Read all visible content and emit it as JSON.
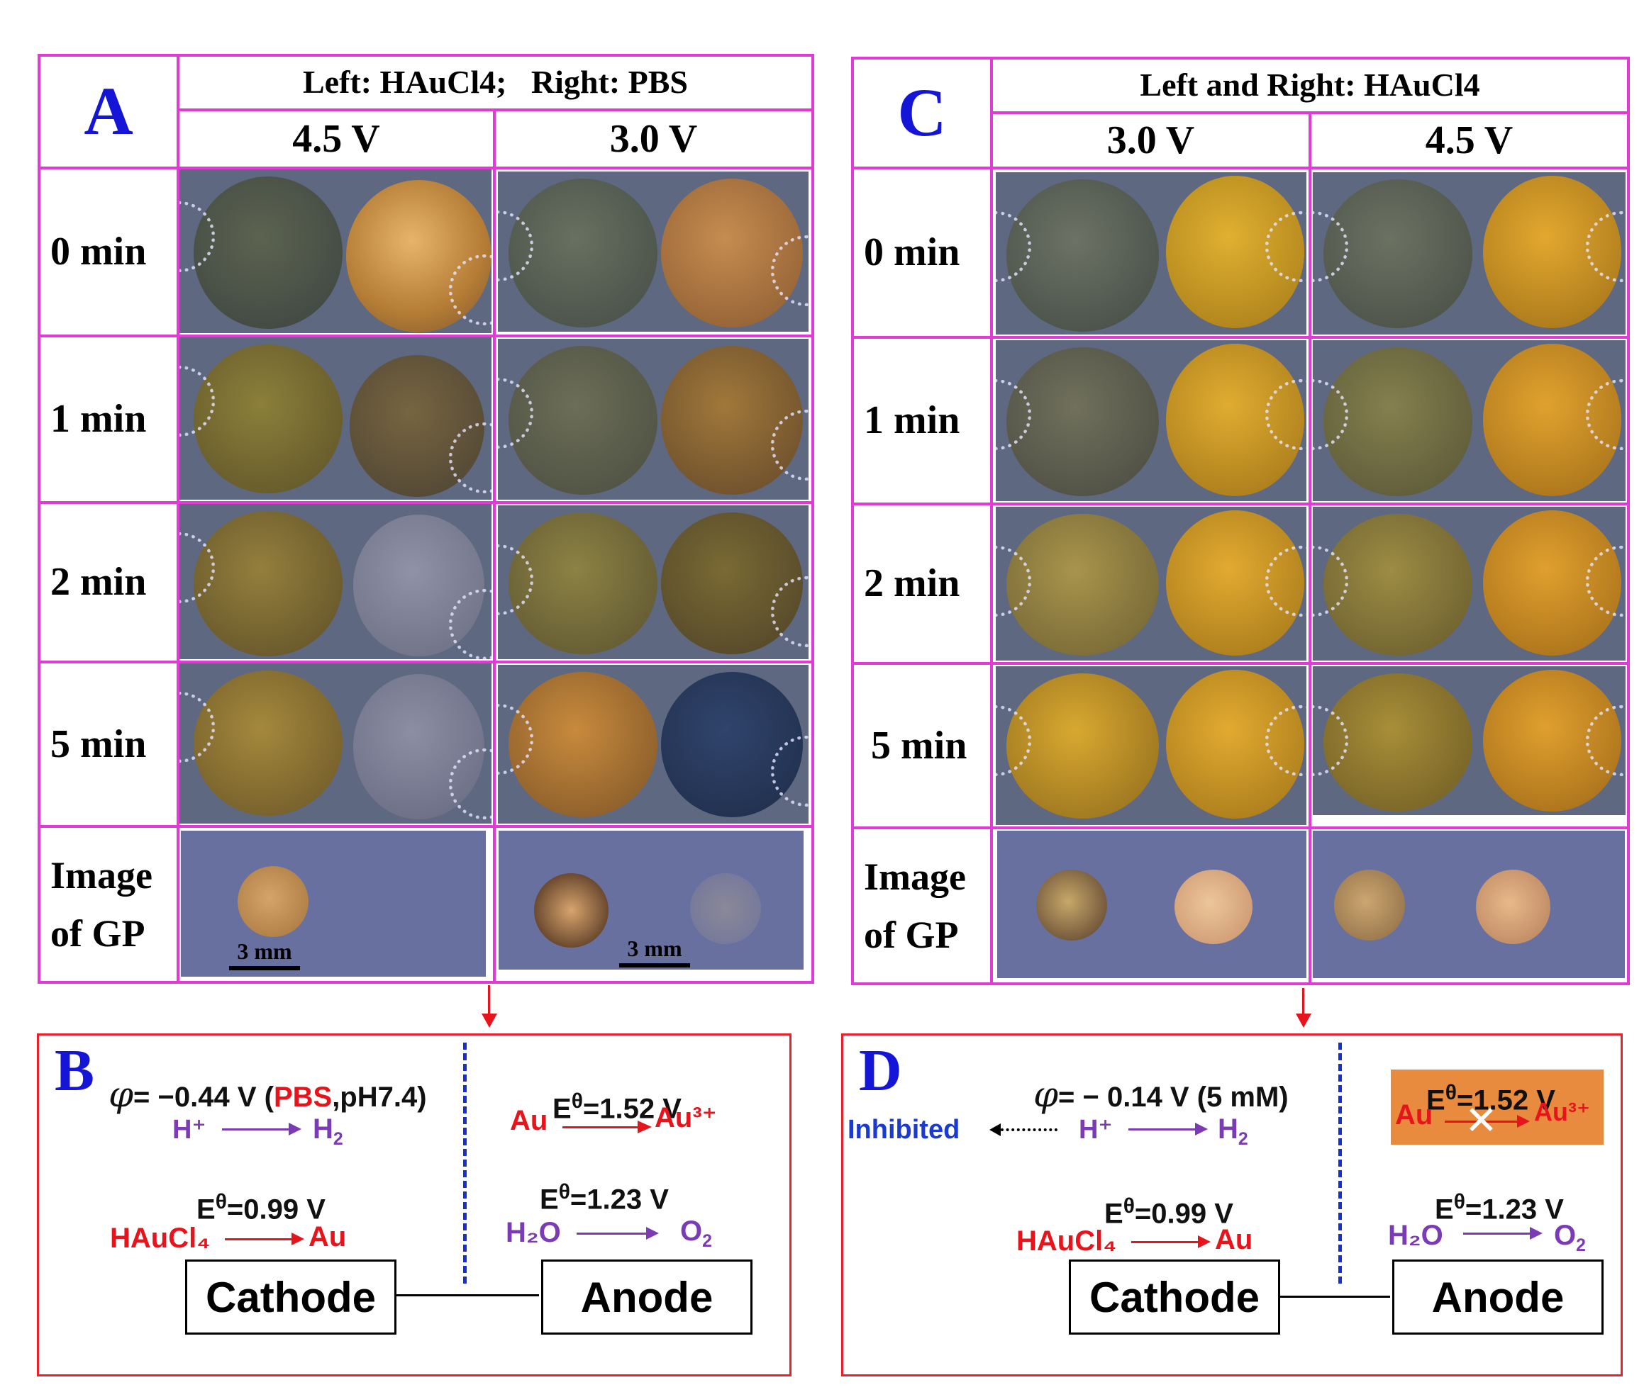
{
  "panel_a": {
    "letter": "A",
    "header": "Left: HAuCl4;   Right: PBS",
    "col1_voltage": "4.5 V",
    "col2_voltage": "3.0 V",
    "rows": [
      "0 min",
      "1 min",
      "2 min",
      "5 min"
    ],
    "gp_label_1": "Image",
    "gp_label_2": "of GP",
    "scale_1": "3 mm",
    "scale_2": "3 mm"
  },
  "panel_c": {
    "letter": "C",
    "header": "Left and Right: HAuCl4",
    "col1_voltage": "3.0 V",
    "col2_voltage": "4.5 V",
    "rows": [
      "0 min",
      "1 min",
      "2 min",
      "5 min"
    ],
    "gp_label_1": "Image",
    "gp_label_2": "of GP"
  },
  "panel_b": {
    "letter": "B",
    "phi_symbol": "φ",
    "phi_value": "= −0.44 V (",
    "phi_pbs": "PBS",
    "phi_tail": ",pH7.4)",
    "h_plus": "H⁺",
    "h2": "H",
    "au_left": "Au",
    "e_au": "E",
    "e_au_value": "=1.52 V",
    "au3": "Au³⁺",
    "e_cat": "E",
    "e_cat_value": "=0.99 V",
    "haucl4": "HAuCl₄",
    "au_prod": "Au",
    "e_o2": "E",
    "e_o2_value": "=1.23 V",
    "h2o": "H₂O",
    "o2": "O",
    "cathode": "Cathode",
    "anode": "Anode"
  },
  "panel_d": {
    "letter": "D",
    "phi_symbol": "φ",
    "phi_value": "= − 0.14 V (5 mM)",
    "inhibited": "Inhibited",
    "h_plus": "H⁺",
    "h2": "H",
    "au_left": "Au",
    "e_au": "E",
    "e_au_value": "=1.52 V",
    "au3": "Au³⁺",
    "e_cat": "E",
    "e_cat_value": "=0.99 V",
    "haucl4": "HAuCl₄",
    "au_prod": "Au",
    "e_o2": "E",
    "e_o2_value": "=1.23 V",
    "h2o": "H₂O",
    "o2": "O",
    "cathode": "Cathode",
    "anode": "Anode"
  },
  "colors": {
    "grid": "#e23ad6",
    "panel_letter": "#1515d8",
    "scheme_border": "#e8222a",
    "red_text": "#e8141c",
    "purple_text": "#7a3bb4",
    "dashed_line": "#1430d0",
    "blocked_box": "#e98b3f"
  }
}
